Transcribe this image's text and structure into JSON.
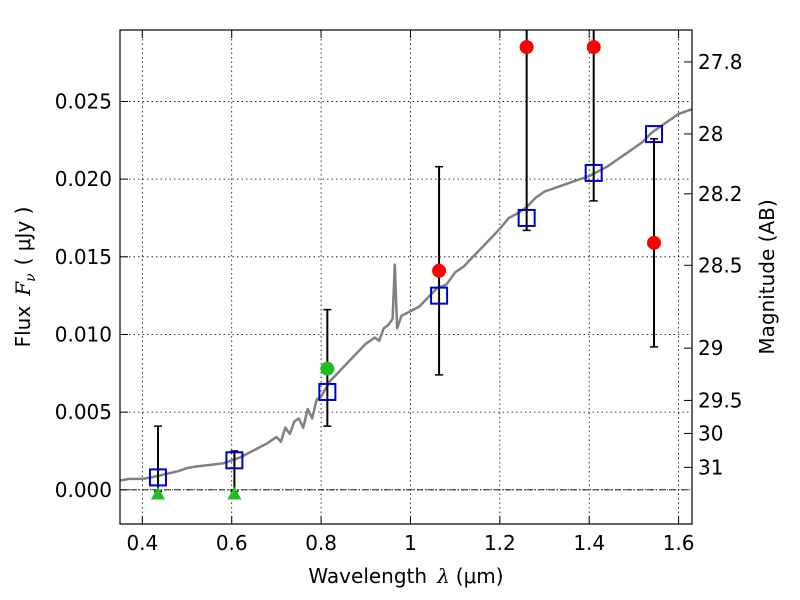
{
  "chart_data": {
    "type": "scatter",
    "xlabel_text": "Wavelength",
    "xlabel_symbol": "λ",
    "xlabel_unit": "(μm)",
    "ylabel_text": "Flux",
    "ylabel_symbol": "F",
    "ylabel_sub": "ν",
    "ylabel_unit": "( μJy )",
    "y2label": "Magnitude (AB)",
    "xlim": [
      0.35,
      1.63
    ],
    "ylim": [
      -0.0022,
      0.0296
    ],
    "xticks": [
      0.4,
      0.6,
      0.8,
      1.0,
      1.2,
      1.4,
      1.6
    ],
    "xtick_labels": [
      "0.4",
      "0.6",
      "0.8",
      "1",
      "1.2",
      "1.4",
      "1.6"
    ],
    "yticks": [
      0.0,
      0.005,
      0.01,
      0.015,
      0.02,
      0.025
    ],
    "ytick_labels": [
      "0.000",
      "0.005",
      "0.010",
      "0.015",
      "0.020",
      "0.025"
    ],
    "y2ticks": [
      27.8,
      28.0,
      28.2,
      28.5,
      29.0,
      29.5,
      30.0,
      31.0
    ],
    "y2tick_labels": [
      "27.8",
      "28",
      "28.2",
      "28.5",
      "29",
      "29.5",
      "30",
      "31"
    ],
    "grid": true,
    "colors": {
      "template": "#808080",
      "model": "#0000cc",
      "detection": "#ff0000",
      "green": "#22bb22",
      "errorbar": "#000000"
    },
    "series": [
      {
        "name": "template-spectrum",
        "kind": "line",
        "points": [
          [
            0.35,
            0.0006
          ],
          [
            0.37,
            0.0007
          ],
          [
            0.4,
            0.0007
          ],
          [
            0.42,
            0.0008
          ],
          [
            0.45,
            0.001
          ],
          [
            0.48,
            0.0012
          ],
          [
            0.5,
            0.0014
          ],
          [
            0.52,
            0.0015
          ],
          [
            0.55,
            0.0016
          ],
          [
            0.58,
            0.0017
          ],
          [
            0.6,
            0.0019
          ],
          [
            0.62,
            0.0021
          ],
          [
            0.64,
            0.0024
          ],
          [
            0.66,
            0.0027
          ],
          [
            0.68,
            0.003
          ],
          [
            0.7,
            0.0034
          ],
          [
            0.71,
            0.0031
          ],
          [
            0.72,
            0.004
          ],
          [
            0.73,
            0.0036
          ],
          [
            0.74,
            0.0044
          ],
          [
            0.75,
            0.0046
          ],
          [
            0.76,
            0.004
          ],
          [
            0.77,
            0.0052
          ],
          [
            0.78,
            0.0046
          ],
          [
            0.79,
            0.0058
          ],
          [
            0.8,
            0.006
          ],
          [
            0.81,
            0.0065
          ],
          [
            0.82,
            0.007
          ],
          [
            0.84,
            0.0076
          ],
          [
            0.86,
            0.0082
          ],
          [
            0.88,
            0.0088
          ],
          [
            0.9,
            0.0094
          ],
          [
            0.92,
            0.0098
          ],
          [
            0.93,
            0.0096
          ],
          [
            0.94,
            0.0104
          ],
          [
            0.95,
            0.0106
          ],
          [
            0.96,
            0.011
          ],
          [
            0.965,
            0.0145
          ],
          [
            0.97,
            0.0104
          ],
          [
            0.98,
            0.0112
          ],
          [
            1.0,
            0.0115
          ],
          [
            1.02,
            0.0118
          ],
          [
            1.04,
            0.0124
          ],
          [
            1.06,
            0.013
          ],
          [
            1.08,
            0.0132
          ],
          [
            1.1,
            0.014
          ],
          [
            1.12,
            0.0144
          ],
          [
            1.14,
            0.015
          ],
          [
            1.16,
            0.0156
          ],
          [
            1.18,
            0.0162
          ],
          [
            1.2,
            0.0168
          ],
          [
            1.22,
            0.0175
          ],
          [
            1.24,
            0.0178
          ],
          [
            1.26,
            0.0182
          ],
          [
            1.28,
            0.0188
          ],
          [
            1.3,
            0.0192
          ],
          [
            1.32,
            0.0194
          ],
          [
            1.34,
            0.0196
          ],
          [
            1.36,
            0.0198
          ],
          [
            1.38,
            0.02
          ],
          [
            1.4,
            0.0202
          ],
          [
            1.42,
            0.0205
          ],
          [
            1.44,
            0.0208
          ],
          [
            1.46,
            0.0212
          ],
          [
            1.48,
            0.0216
          ],
          [
            1.5,
            0.022
          ],
          [
            1.52,
            0.0224
          ],
          [
            1.54,
            0.023
          ],
          [
            1.56,
            0.0234
          ],
          [
            1.58,
            0.0238
          ],
          [
            1.6,
            0.0242
          ],
          [
            1.63,
            0.0245
          ]
        ]
      },
      {
        "name": "model-fluxes",
        "kind": "open-square",
        "points": [
          [
            0.435,
            0.0008
          ],
          [
            0.606,
            0.0019
          ],
          [
            0.814,
            0.0063
          ],
          [
            1.064,
            0.0125
          ],
          [
            1.26,
            0.0175
          ],
          [
            1.41,
            0.0204
          ],
          [
            1.545,
            0.0229
          ]
        ]
      },
      {
        "name": "detections",
        "kind": "filled-circle",
        "points": [
          [
            1.064,
            0.0141,
            0.0074,
            0.0208
          ],
          [
            1.26,
            0.0285,
            0.0167,
            0.0296
          ],
          [
            1.41,
            0.0285,
            0.0186,
            0.0296
          ],
          [
            1.545,
            0.0159,
            0.0092,
            0.0226
          ]
        ]
      },
      {
        "name": "green-detection",
        "kind": "filled-circle",
        "points": [
          [
            0.814,
            0.0078,
            0.0041,
            0.0116
          ]
        ]
      },
      {
        "name": "upper-limits",
        "kind": "filled-triangle",
        "points": [
          [
            0.435,
            -0.0003,
            -0.0001,
            0.0041
          ],
          [
            0.606,
            -0.0003,
            -0.0001,
            0.0025
          ]
        ]
      }
    ]
  }
}
